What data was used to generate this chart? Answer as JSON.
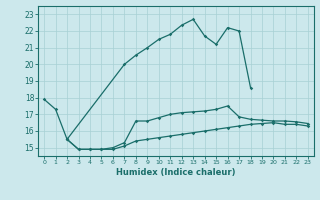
{
  "xlabel": "Humidex (Indice chaleur)",
  "bg_color": "#cce8ec",
  "grid_color": "#a8d0d4",
  "line_color": "#1a6e6a",
  "xlim": [
    -0.5,
    23.5
  ],
  "ylim": [
    14.5,
    23.5
  ],
  "yticks": [
    15,
    16,
    17,
    18,
    19,
    20,
    21,
    22,
    23
  ],
  "xticks": [
    0,
    1,
    2,
    3,
    4,
    5,
    6,
    7,
    8,
    9,
    10,
    11,
    12,
    13,
    14,
    15,
    16,
    17,
    18,
    19,
    20,
    21,
    22,
    23
  ],
  "s1_x": [
    0,
    1,
    2,
    7,
    8,
    9,
    10,
    11,
    12,
    13,
    14,
    15,
    16,
    17,
    18
  ],
  "s1_y": [
    17.9,
    17.3,
    15.5,
    20.0,
    20.55,
    21.0,
    21.5,
    21.8,
    22.35,
    22.7,
    21.7,
    21.2,
    22.2,
    22.0,
    18.6
  ],
  "s2_x": [
    2,
    3,
    4,
    5,
    6,
    7,
    8,
    9,
    10,
    11,
    12,
    13,
    14,
    15,
    16,
    17,
    18,
    19,
    20,
    21,
    22,
    23
  ],
  "s2_y": [
    15.5,
    14.9,
    14.9,
    14.9,
    15.0,
    15.3,
    16.6,
    16.6,
    16.8,
    17.0,
    17.1,
    17.15,
    17.2,
    17.3,
    17.5,
    16.85,
    16.7,
    16.65,
    16.6,
    16.6,
    16.55,
    16.45
  ],
  "s3_x": [
    2,
    3,
    4,
    5,
    6,
    7,
    8,
    9,
    10,
    11,
    12,
    13,
    14,
    15,
    16,
    17,
    18,
    19,
    20,
    21,
    22,
    23
  ],
  "s3_y": [
    15.5,
    14.9,
    14.9,
    14.9,
    14.9,
    15.1,
    15.4,
    15.5,
    15.6,
    15.7,
    15.8,
    15.9,
    16.0,
    16.1,
    16.2,
    16.3,
    16.4,
    16.45,
    16.5,
    16.4,
    16.4,
    16.3
  ]
}
